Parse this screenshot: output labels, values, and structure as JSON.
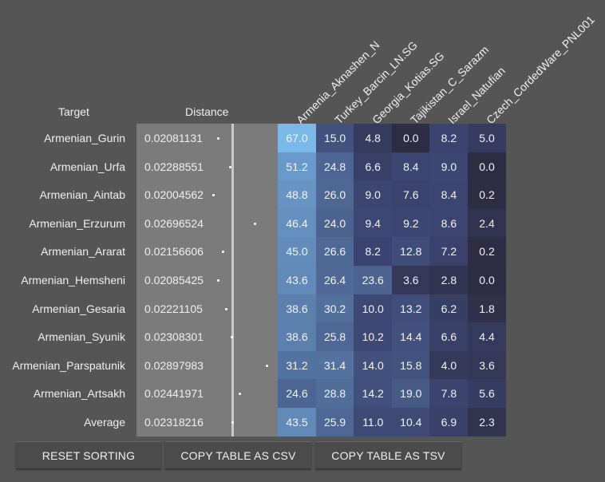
{
  "headers": {
    "target": "Target",
    "distance": "Distance",
    "populations": [
      "Armenia_Aknashen_N",
      "Turkey_Barcin_LN.SG",
      "Georgia_Kotias.SG",
      "Tajikistan_C_Sarazm",
      "Israel_Natufian",
      "Czech_CordedWare_PNL001"
    ]
  },
  "rows": [
    {
      "target": "Armenian_Gurin",
      "distance": "0.02081131",
      "values": [
        "67.0",
        "15.0",
        "4.8",
        "0.0",
        "8.2",
        "5.0"
      ]
    },
    {
      "target": "Armenian_Urfa",
      "distance": "0.02288551",
      "values": [
        "51.2",
        "24.8",
        "6.6",
        "8.4",
        "9.0",
        "0.0"
      ]
    },
    {
      "target": "Armenian_Aintab",
      "distance": "0.02004562",
      "values": [
        "48.8",
        "26.0",
        "9.0",
        "7.6",
        "8.4",
        "0.2"
      ]
    },
    {
      "target": "Armenian_Erzurum",
      "distance": "0.02696524",
      "values": [
        "46.4",
        "24.0",
        "9.4",
        "9.2",
        "8.6",
        "2.4"
      ]
    },
    {
      "target": "Armenian_Ararat",
      "distance": "0.02156606",
      "values": [
        "45.0",
        "26.6",
        "8.2",
        "12.8",
        "7.2",
        "0.2"
      ]
    },
    {
      "target": "Armenian_Hemsheni",
      "distance": "0.02085425",
      "values": [
        "43.6",
        "26.4",
        "23.6",
        "3.6",
        "2.8",
        "0.0"
      ]
    },
    {
      "target": "Armenian_Gesaria",
      "distance": "0.02221105",
      "values": [
        "38.6",
        "30.2",
        "10.0",
        "13.2",
        "6.2",
        "1.8"
      ]
    },
    {
      "target": "Armenian_Syunik",
      "distance": "0.02308301",
      "values": [
        "38.6",
        "25.8",
        "10.2",
        "14.4",
        "6.6",
        "4.4"
      ]
    },
    {
      "target": "Armenian_Parspatunik",
      "distance": "0.02897983",
      "values": [
        "31.2",
        "31.4",
        "14.0",
        "15.8",
        "4.0",
        "3.6"
      ]
    },
    {
      "target": "Armenian_Artsakh",
      "distance": "0.02441971",
      "values": [
        "24.6",
        "28.8",
        "14.2",
        "19.0",
        "7.8",
        "5.6"
      ]
    },
    {
      "target": "Average",
      "distance": "0.02318216",
      "values": [
        "43.5",
        "25.9",
        "11.0",
        "10.4",
        "6.9",
        "2.3"
      ]
    }
  ],
  "buttons": {
    "reset": "RESET SORTING",
    "csv": "COPY TABLE AS CSV",
    "tsv": "COPY TABLE AS TSV"
  },
  "colors": {
    "background": "#555555",
    "distance_bg": "#7b7b7b",
    "heat_low": "#3b4470",
    "heat_high": "#7ab8e8"
  }
}
